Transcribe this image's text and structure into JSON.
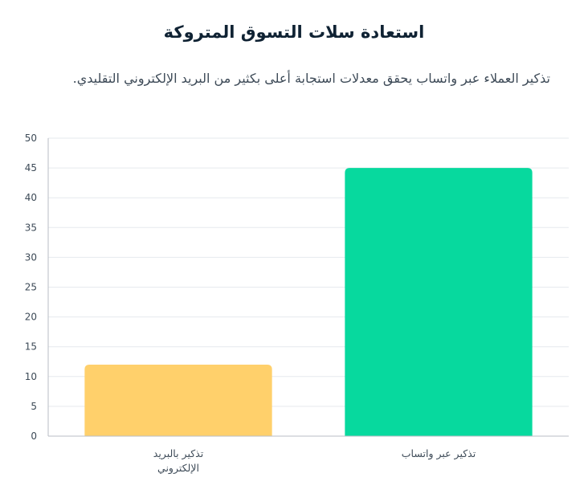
{
  "title": "استعادة سلات التسوق المتروكة",
  "subtitle": "تذكير العملاء عبر واتساب يحقق معدلات استجابة أعلى بكثير من البريد الإلكتروني التقليدي.",
  "chart_data": {
    "type": "bar",
    "title": "",
    "xlabel": "",
    "ylabel": "",
    "ylim": [
      0,
      50
    ],
    "yticks": [
      0,
      5,
      10,
      15,
      20,
      25,
      30,
      35,
      40,
      45,
      50
    ],
    "grid": true,
    "categories": [
      [
        "تذكير بالبريد",
        "الإلكتروني"
      ],
      [
        "تذكير عبر واتساب"
      ]
    ],
    "values": [
      12,
      45
    ],
    "colors": [
      "#FFD06B",
      "#07D99E"
    ],
    "grid_color": "#E6E9EE",
    "axis_color": "#B8BEC6"
  }
}
